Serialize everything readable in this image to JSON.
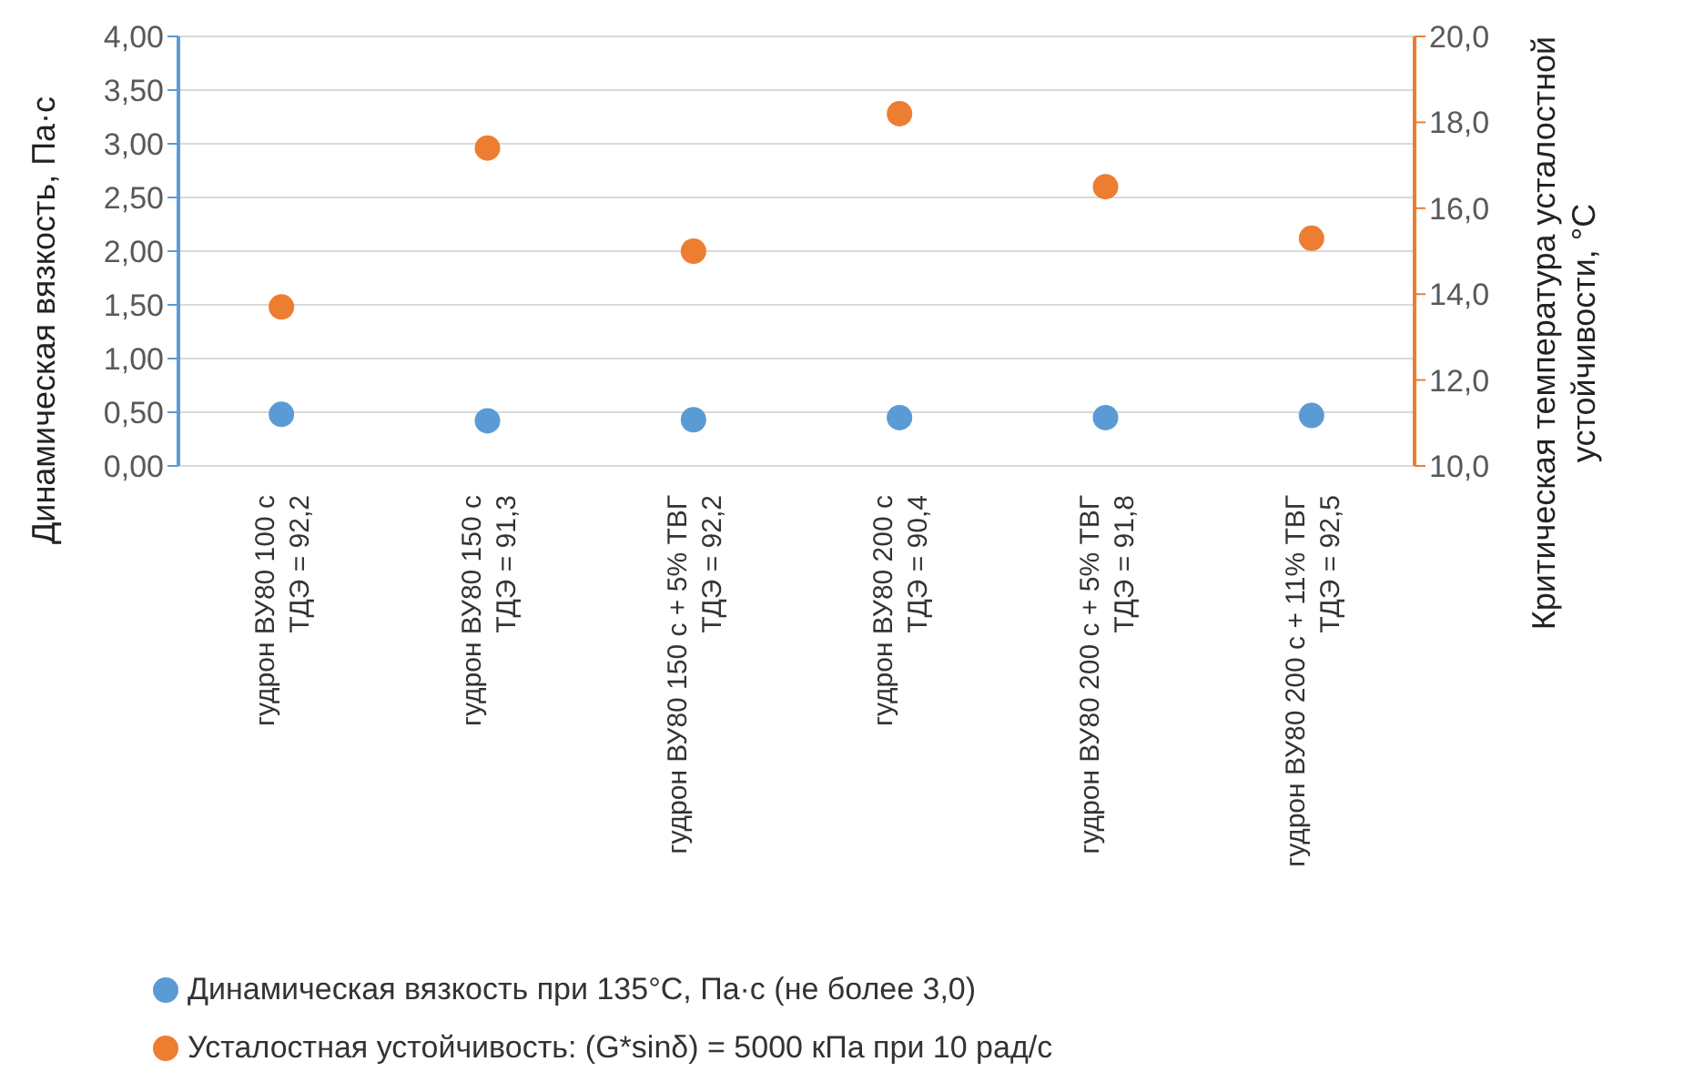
{
  "chart_data": {
    "type": "scatter",
    "categories": [
      "гудрон ВУ80 100 с\nТДЭ = 92,2",
      "гудрон ВУ80 150 с\nТДЭ = 91,3",
      "гудрон ВУ80 150 с + 5% ТВГ\nТДЭ = 92,2",
      "гудрон ВУ80 200 с\nТДЭ = 90,4",
      "гудрон ВУ80 200 с + 5% ТВГ\nТДЭ = 91,8",
      "гудрон ВУ80 200 с + 11% ТВГ\nТДЭ = 92,5"
    ],
    "series": [
      {
        "name": "Динамическая вязкость при 135°C, Па·с (не более 3,0)",
        "color": "#5b9bd5",
        "values": [
          0.48,
          0.42,
          0.43,
          0.45,
          0.45,
          0.47
        ]
      },
      {
        "name": "Усталостная устойчивость: (G*sinδ) = 5000 кПа при 10 рад/с",
        "color": "#ed7d31",
        "values": [
          13.7,
          17.4,
          15.0,
          18.2,
          16.5,
          15.3
        ],
        "axis": "y2"
      }
    ],
    "ylabel": "Динамическая вязкость, Па·с",
    "y2label": "Критическая температура усталостной\nустойчивости, °C",
    "ylim": [
      0,
      4
    ],
    "yticks": [
      {
        "value": 0,
        "label": "0,00"
      },
      {
        "value": 0.5,
        "label": "0,50"
      },
      {
        "value": 1,
        "label": "1,00"
      },
      {
        "value": 1.5,
        "label": "1,50"
      },
      {
        "value": 2,
        "label": "2,00"
      },
      {
        "value": 2.5,
        "label": "2,50"
      },
      {
        "value": 3,
        "label": "3,00"
      },
      {
        "value": 3.5,
        "label": "3,50"
      },
      {
        "value": 4,
        "label": "4,00"
      }
    ],
    "y2lim": [
      10,
      20
    ],
    "y2ticks": [
      {
        "value": 10,
        "label": "10,0"
      },
      {
        "value": 12,
        "label": "12,0"
      },
      {
        "value": 14,
        "label": "14,0"
      },
      {
        "value": 16,
        "label": "16,0"
      },
      {
        "value": 18,
        "label": "18,0"
      },
      {
        "value": 20,
        "label": "20,0"
      }
    ],
    "grid": "y",
    "legend": "bottom",
    "marker": "circle"
  }
}
